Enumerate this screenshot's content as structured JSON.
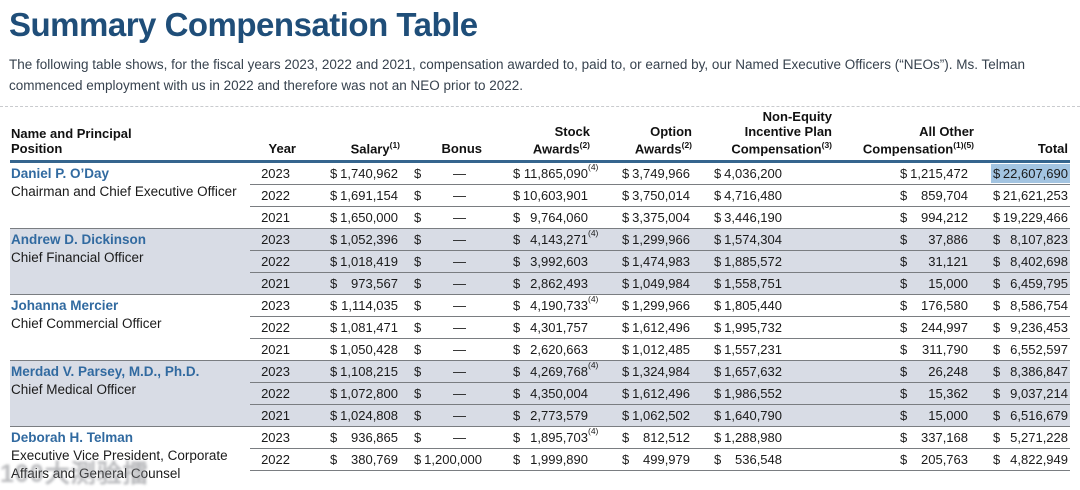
{
  "page": {
    "title": "Summary Compensation Table",
    "intro": "The following table shows, for the fiscal years 2023, 2022 and 2021, compensation awarded to, paid to, or earned by, our Named Executive Officers (“NEOs”). Ms. Telman commenced employment with us in 2022 and therefore was not an NEO prior to 2022.",
    "watermark": "100大测验擂"
  },
  "colors": {
    "title_blue": "#1f4e79",
    "name_link_blue": "#316aa0",
    "header_rule_blue": "#35658e",
    "row_shade": "#d8dce5",
    "total_highlight": "#a3c4e1"
  },
  "table": {
    "columns": [
      {
        "key": "name",
        "lines": [
          "Name and Principal",
          "Position"
        ],
        "sup": ""
      },
      {
        "key": "year",
        "lines": [
          "Year"
        ],
        "sup": ""
      },
      {
        "key": "salary",
        "lines": [
          "Salary"
        ],
        "sup": "(1)"
      },
      {
        "key": "bonus",
        "lines": [
          "Bonus"
        ],
        "sup": ""
      },
      {
        "key": "stock",
        "lines": [
          "Stock",
          "Awards"
        ],
        "sup": "(2)"
      },
      {
        "key": "option",
        "lines": [
          "Option",
          "Awards"
        ],
        "sup": "(2)"
      },
      {
        "key": "neip",
        "lines": [
          "Non-Equity",
          "Incentive Plan",
          "Compensation"
        ],
        "sup": "(3)"
      },
      {
        "key": "other",
        "lines": [
          "All Other",
          "Compensation"
        ],
        "sup": "(1)(5)"
      },
      {
        "key": "total",
        "lines": [
          "Total"
        ],
        "sup": ""
      }
    ],
    "executives": [
      {
        "name": "Daniel P. O’Day",
        "role": "Chairman and Chief Executive Officer",
        "shaded": false,
        "rows": [
          {
            "year": "2023",
            "salary": "1,740,962",
            "bonus": "—",
            "stock": "11,865,090",
            "stock_sup": "(4)",
            "option": "3,749,966",
            "neip": "4,036,200",
            "other": "1,215,472",
            "total": "22,607,690",
            "total_highlight": true
          },
          {
            "year": "2022",
            "salary": "1,691,154",
            "bonus": "—",
            "stock": "10,603,901",
            "stock_sup": "",
            "option": "3,750,014",
            "neip": "4,716,480",
            "other": "859,704",
            "total": "21,621,253",
            "total_highlight": false
          },
          {
            "year": "2021",
            "salary": "1,650,000",
            "bonus": "—",
            "stock": "9,764,060",
            "stock_sup": "",
            "option": "3,375,004",
            "neip": "3,446,190",
            "other": "994,212",
            "total": "19,229,466",
            "total_highlight": false
          }
        ]
      },
      {
        "name": "Andrew D. Dickinson",
        "role": "Chief Financial Officer",
        "shaded": true,
        "rows": [
          {
            "year": "2023",
            "salary": "1,052,396",
            "bonus": "—",
            "stock": "4,143,271",
            "stock_sup": "(4)",
            "option": "1,299,966",
            "neip": "1,574,304",
            "other": "37,886",
            "total": "8,107,823",
            "total_highlight": false
          },
          {
            "year": "2022",
            "salary": "1,018,419",
            "bonus": "—",
            "stock": "3,992,603",
            "stock_sup": "",
            "option": "1,474,983",
            "neip": "1,885,572",
            "other": "31,121",
            "total": "8,402,698",
            "total_highlight": false
          },
          {
            "year": "2021",
            "salary": "973,567",
            "bonus": "—",
            "stock": "2,862,493",
            "stock_sup": "",
            "option": "1,049,984",
            "neip": "1,558,751",
            "other": "15,000",
            "total": "6,459,795",
            "total_highlight": false
          }
        ]
      },
      {
        "name": "Johanna Mercier",
        "role": "Chief Commercial Officer",
        "shaded": false,
        "rows": [
          {
            "year": "2023",
            "salary": "1,114,035",
            "bonus": "—",
            "stock": "4,190,733",
            "stock_sup": "(4)",
            "option": "1,299,966",
            "neip": "1,805,440",
            "other": "176,580",
            "total": "8,586,754",
            "total_highlight": false
          },
          {
            "year": "2022",
            "salary": "1,081,471",
            "bonus": "—",
            "stock": "4,301,757",
            "stock_sup": "",
            "option": "1,612,496",
            "neip": "1,995,732",
            "other": "244,997",
            "total": "9,236,453",
            "total_highlight": false
          },
          {
            "year": "2021",
            "salary": "1,050,428",
            "bonus": "—",
            "stock": "2,620,663",
            "stock_sup": "",
            "option": "1,012,485",
            "neip": "1,557,231",
            "other": "311,790",
            "total": "6,552,597",
            "total_highlight": false
          }
        ]
      },
      {
        "name": "Merdad V. Parsey, M.D., Ph.D.",
        "role": "Chief Medical Officer",
        "shaded": true,
        "rows": [
          {
            "year": "2023",
            "salary": "1,108,215",
            "bonus": "—",
            "stock": "4,269,768",
            "stock_sup": "(4)",
            "option": "1,324,984",
            "neip": "1,657,632",
            "other": "26,248",
            "total": "8,386,847",
            "total_highlight": false
          },
          {
            "year": "2022",
            "salary": "1,072,800",
            "bonus": "—",
            "stock": "4,350,004",
            "stock_sup": "",
            "option": "1,612,496",
            "neip": "1,986,552",
            "other": "15,362",
            "total": "9,037,214",
            "total_highlight": false
          },
          {
            "year": "2021",
            "salary": "1,024,808",
            "bonus": "—",
            "stock": "2,773,579",
            "stock_sup": "",
            "option": "1,062,502",
            "neip": "1,640,790",
            "other": "15,000",
            "total": "6,516,679",
            "total_highlight": false
          }
        ]
      },
      {
        "name": "Deborah H. Telman",
        "role": "Executive Vice President, Corporate Affairs and General Counsel",
        "shaded": false,
        "rows": [
          {
            "year": "2023",
            "salary": "936,865",
            "bonus": "—",
            "stock": "1,895,703",
            "stock_sup": "(4)",
            "option": "812,512",
            "neip": "1,288,980",
            "other": "337,168",
            "total": "5,271,228",
            "total_highlight": false
          },
          {
            "year": "2022",
            "salary": "380,769",
            "bonus": "1,200,000",
            "stock": "1,999,890",
            "stock_sup": "",
            "option": "499,979",
            "neip": "536,548",
            "other": "205,763",
            "total": "4,822,949",
            "total_highlight": false
          }
        ]
      }
    ]
  }
}
